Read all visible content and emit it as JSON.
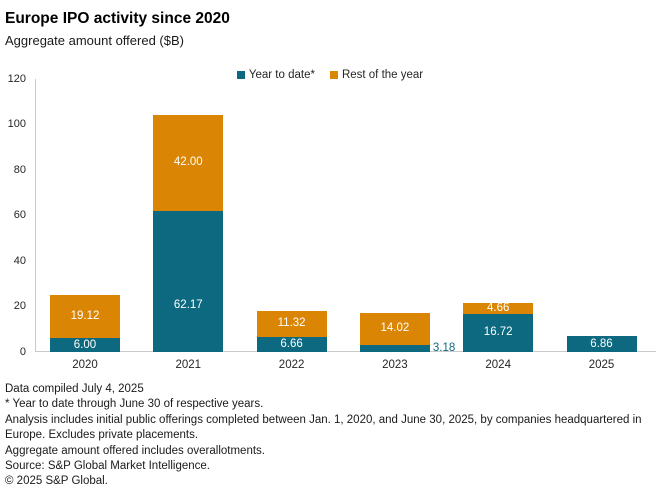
{
  "chart_data": {
    "type": "bar",
    "stacked": true,
    "title": "Europe IPO activity since 2020",
    "subtitle": "Aggregate amount offered ($B)",
    "categories": [
      "2020",
      "2021",
      "2022",
      "2023",
      "2024",
      "2025"
    ],
    "series": [
      {
        "name": "Year to date*",
        "color": "#0C6980",
        "values": [
          6.0,
          62.17,
          6.66,
          3.18,
          16.72,
          6.86
        ]
      },
      {
        "name": "Rest of the year",
        "color": "#DB8505",
        "values": [
          19.12,
          42.0,
          11.32,
          14.02,
          4.66,
          null
        ]
      }
    ],
    "value_label_decimals": 2,
    "inside_label_color": "#ffffff",
    "ylim": [
      0,
      120
    ],
    "yticks": [
      0,
      20,
      40,
      60,
      80,
      100,
      120
    ],
    "grid": false,
    "legend_position": "top-center",
    "outside_labels": [
      {
        "series": 0,
        "index": 3
      }
    ],
    "label_y_fraction_overrides": [
      {
        "series": 0,
        "index": 1,
        "fraction": 0.67
      }
    ],
    "axis_color": "#c9c9c9"
  },
  "footer": {
    "lines": [
      "Data compiled July 4, 2025",
      "* Year to date through June 30 of respective years.",
      "Analysis includes initial public offerings completed between Jan. 1, 2020, and June 30, 2025, by companies headquartered in Europe. Excludes private placements.",
      "Aggregate amount offered includes overallotments.",
      "Source: S&P Global Market Intelligence.",
      "© 2025 S&P Global."
    ]
  }
}
